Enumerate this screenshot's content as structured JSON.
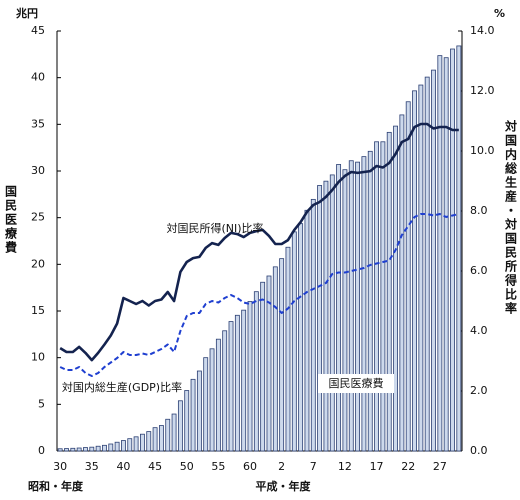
{
  "chart_data": {
    "type": "bar_line",
    "y_unit": "兆円",
    "y2_unit": "%",
    "ylabel": "国民医療費",
    "y2label": "対国内総生産・対国民所得比率",
    "xlabels": [
      "昭和・年度",
      "平成・年度"
    ],
    "categories": [
      "30",
      null,
      null,
      null,
      null,
      "35",
      null,
      null,
      null,
      null,
      "40",
      null,
      null,
      null,
      null,
      "45",
      null,
      null,
      null,
      null,
      "50",
      null,
      null,
      null,
      null,
      "55",
      null,
      null,
      null,
      null,
      "60",
      null,
      null,
      null,
      null,
      "2",
      null,
      null,
      null,
      null,
      "7",
      null,
      null,
      null,
      null,
      "12",
      null,
      null,
      null,
      null,
      "17",
      null,
      null,
      null,
      null,
      "22",
      null,
      null,
      null,
      null,
      "27",
      null,
      null,
      null
    ],
    "ylim": [
      0,
      45
    ],
    "yticks": [
      0,
      5,
      10,
      15,
      20,
      25,
      30,
      35,
      40,
      45
    ],
    "y2lim": [
      0,
      14
    ],
    "y2ticks": [
      {
        "value": 0,
        "label": "0.0"
      },
      {
        "value": 2,
        "label": "2.0"
      },
      {
        "value": 4,
        "label": "4.0"
      },
      {
        "value": 6,
        "label": "6.0"
      },
      {
        "value": 8,
        "label": "8.0"
      },
      {
        "value": 10,
        "label": "10.0"
      },
      {
        "value": 12,
        "label": "12.0"
      },
      {
        "value": 14,
        "label": "14.0"
      }
    ],
    "grid": false,
    "series": [
      {
        "name": "国民医療費",
        "type": "bar",
        "color": "#cdd9ec",
        "edge": "#2b3f73",
        "values": [
          0.24,
          0.26,
          0.29,
          0.32,
          0.37,
          0.41,
          0.51,
          0.61,
          0.75,
          0.94,
          1.12,
          1.32,
          1.52,
          1.8,
          2.08,
          2.5,
          2.73,
          3.4,
          3.96,
          5.38,
          6.48,
          7.68,
          8.57,
          10.0,
          10.95,
          11.98,
          12.88,
          13.87,
          14.54,
          15.09,
          16.02,
          17.07,
          18.08,
          18.75,
          19.73,
          20.61,
          21.83,
          23.48,
          24.36,
          25.79,
          26.96,
          28.45,
          28.91,
          29.58,
          30.7,
          30.14,
          31.1,
          30.95,
          31.54,
          32.11,
          33.13,
          33.13,
          34.14,
          34.81,
          36.01,
          37.42,
          38.59,
          39.21,
          40.06,
          40.81,
          42.36,
          42.14,
          43.07,
          43.4
        ]
      },
      {
        "name": "対国民所得(NI)比率",
        "type": "line",
        "axis": "y2",
        "color": "#14234f",
        "dashed": false,
        "values": [
          3.43,
          3.3,
          3.3,
          3.47,
          3.27,
          3.03,
          3.27,
          3.55,
          3.85,
          4.25,
          5.1,
          5.0,
          4.9,
          5.0,
          4.85,
          5.0,
          5.05,
          5.3,
          5.0,
          5.97,
          6.3,
          6.43,
          6.47,
          6.77,
          6.93,
          6.87,
          7.1,
          7.27,
          7.23,
          7.13,
          7.27,
          7.33,
          7.37,
          7.17,
          6.9,
          6.9,
          7.03,
          7.37,
          7.63,
          7.97,
          8.2,
          8.3,
          8.47,
          8.7,
          8.97,
          9.17,
          9.3,
          9.27,
          9.3,
          9.33,
          9.5,
          9.45,
          9.6,
          9.9,
          10.3,
          10.4,
          10.8,
          10.9,
          10.9,
          10.75,
          10.8,
          10.8,
          10.7,
          10.7
        ]
      },
      {
        "name": "対国内総生産(GDP)比率",
        "type": "line",
        "axis": "y2",
        "color": "#1f3fd0",
        "dashed": true,
        "values": [
          2.8,
          2.7,
          2.7,
          2.8,
          2.6,
          2.5,
          2.6,
          2.8,
          2.95,
          3.1,
          3.3,
          3.2,
          3.2,
          3.25,
          3.2,
          3.3,
          3.4,
          3.55,
          3.3,
          4.0,
          4.5,
          4.6,
          4.6,
          4.9,
          5.0,
          4.95,
          5.1,
          5.2,
          5.1,
          4.95,
          4.9,
          5.0,
          5.05,
          4.95,
          4.8,
          4.6,
          4.75,
          5.0,
          5.15,
          5.3,
          5.4,
          5.5,
          5.6,
          5.9,
          5.95,
          5.95,
          6.0,
          6.05,
          6.1,
          6.2,
          6.25,
          6.3,
          6.35,
          6.7,
          7.2,
          7.5,
          7.8,
          7.9,
          7.9,
          7.85,
          7.9,
          7.8,
          7.85,
          7.9
        ]
      }
    ]
  }
}
